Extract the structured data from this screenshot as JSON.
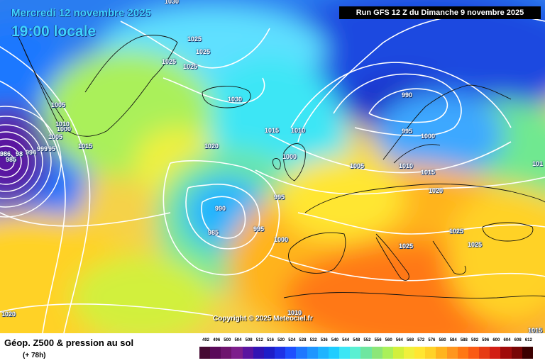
{
  "header": {
    "date_text": "Mercredi 12 novembre 2025",
    "time_text": "19:00 locale",
    "run_text": "Run GFS 12 Z du Dimanche 9 novembre 2025"
  },
  "copyright": "Copyright © 2025 Meteociel.fr",
  "footer": {
    "title": "Géop. Z500 & pression au sol",
    "subtitle": "(+ 78h)"
  },
  "legend": {
    "ticks": [
      "492",
      "496",
      "500",
      "504",
      "508",
      "512",
      "516",
      "520",
      "524",
      "528",
      "532",
      "536",
      "540",
      "544",
      "548",
      "552",
      "556",
      "560",
      "564",
      "568",
      "572",
      "576",
      "580",
      "584",
      "588",
      "592",
      "596",
      "600",
      "604",
      "608",
      "612"
    ],
    "colors": [
      "#460a32",
      "#5a0a5a",
      "#6e146e",
      "#7d1e8c",
      "#5a14a0",
      "#3214b4",
      "#1e1ec8",
      "#1e32e6",
      "#1e50ff",
      "#1e78ff",
      "#1e96ff",
      "#1eb4ff",
      "#1ecdff",
      "#3ce6f5",
      "#5af0d2",
      "#6ee6a0",
      "#8ce678",
      "#aaf05a",
      "#d2f03c",
      "#f0f03c",
      "#ffe632",
      "#ffd228",
      "#ffb41e",
      "#ff961e",
      "#ff7814",
      "#fa5a14",
      "#e63c14",
      "#d21e14",
      "#a00a0a",
      "#780505",
      "#3c0000"
    ]
  },
  "isobars": [
    "1030",
    "1025",
    "1025",
    "1025",
    "1025",
    "1030",
    "1005",
    "1000",
    "990",
    "995",
    "1000",
    "1015",
    "1010",
    "1020",
    "1000",
    "1005",
    "1010",
    "1015",
    "1020",
    "1025",
    "1025",
    "1025",
    "990",
    "985",
    "995",
    "995",
    "1000",
    "1010",
    "1020",
    "1015",
    "1015",
    "101",
    "1010",
    "1005",
    "995",
    "999",
    "994",
    "985",
    "98",
    "986"
  ]
}
